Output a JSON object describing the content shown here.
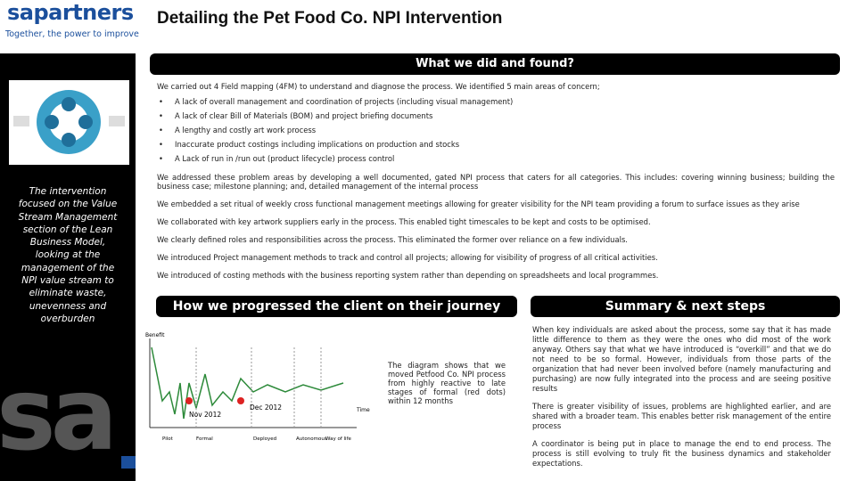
{
  "header": {
    "logo_name": "sapartners",
    "logo_tagline": "Together, the power to improve",
    "title": "Detailing the Pet Food Co. NPI Intervention"
  },
  "sidebar": {
    "text": "The intervention focused on the Value Stream Management section of the Lean Business Model, looking at the management of the NPI value stream to eliminate waste, unevenness and overburden"
  },
  "section1": {
    "heading": "What we did and found?",
    "intro": "We carried out 4 Field mapping (4FM) to understand and diagnose the process. We identified 5 main areas of concern;",
    "bullets": [
      "A lack of overall management and coordination of projects (including visual management)",
      "A lack of clear Bill of Materials (BOM) and project briefing documents",
      "A lengthy and costly art work process",
      "Inaccurate product costings including implications on production and stocks",
      "A Lack of run in /run out (product lifecycle) process control"
    ],
    "paragraphs": [
      "We addressed these problem areas by developing a well documented, gated NPI process that caters for all categories. This includes: covering winning business; building the business case; milestone planning; and, detailed management of the internal process",
      "We embedded a set ritual of weekly cross functional management meetings allowing for greater visibility for the NPI team providing a forum to surface issues as they arise",
      "We collaborated with key artwork suppliers early in the process. This enabled tight timescales to be kept and costs to be optimised.",
      "We clearly defined roles and responsibilities across the process. This eliminated the former over reliance on a few individuals.",
      "We introduced Project management methods to track and control all projects; allowing for visibility of progress of all critical activities.",
      "We introduced of costing methods with the business reporting system rather than depending on spreadsheets and local programmes."
    ]
  },
  "section2": {
    "heading": "How we progressed the client on their journey",
    "diagram": {
      "y_label": "Benefit",
      "x_label": "Time",
      "points": [
        "Nov 2012",
        "Dec 2012"
      ],
      "stages": [
        "Pilot",
        "Formal",
        "Deployed",
        "Autonomous",
        "Way of life"
      ]
    },
    "caption": "The diagram shows that we moved Petfood Co. NPI process from highly reactive to late stages of formal (red dots) within 12 months"
  },
  "section3": {
    "heading": "Summary & next steps",
    "paragraphs": [
      "When key individuals are asked about the process, some say that it has made little difference to them as they were the ones who did most of the work anyway. Others say that what we have introduced is “overkill” and that we do not need to be so formal. However, individuals from those parts of the organization that had never been involved before (namely manufacturing and purchasing) are now fully integrated into the process and are seeing positive results",
      "There is greater visibility of issues, problems are highlighted earlier, and are shared with a broader team. This enables better risk management of the entire process",
      "A coordinator is being put in place to manage the end to end process. The process is still evolving to truly fit the business dynamics and stakeholder expectations."
    ]
  }
}
